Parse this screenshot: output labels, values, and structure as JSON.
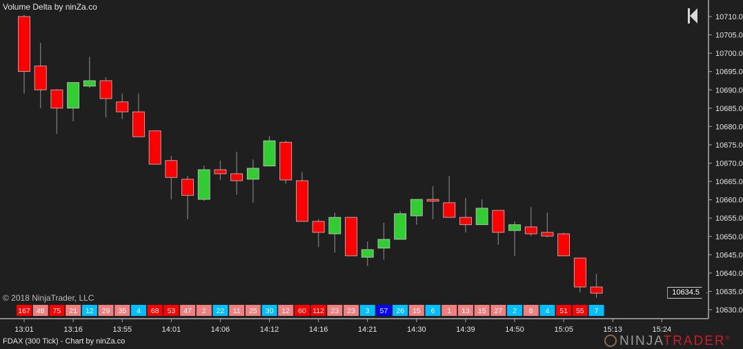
{
  "indicator_title": "Volume Delta by ninZa.co",
  "copyright": "© 2018 NinjaTrader, LLC",
  "footer": "FDAX (300 Tick) - Chart by ninZa.co",
  "logo": {
    "part1": "NINJA",
    "part2": "TRADER",
    "reg": "®"
  },
  "nav_button_icon": "skip-to-end-icon",
  "last_price": "10634.5",
  "colors": {
    "background": "#1f1f1f",
    "up": "#32cd32",
    "down": "#ff0000",
    "strong_neg": "#ff0000",
    "weak_neg": "#f08080",
    "pos": "#00bfff",
    "strong_pos": "#0000ff"
  },
  "chart_data": {
    "type": "candlestick",
    "ylim": [
      10628,
      10712
    ],
    "y_ticks": [
      "10630.0",
      "10635.0",
      "10640.0",
      "10645.0",
      "10650.0",
      "10655.0",
      "10660.0",
      "10665.0",
      "10670.0",
      "10675.0",
      "10680.0",
      "10685.0",
      "10690.0",
      "10695.0",
      "10700.0",
      "10705.0",
      "10710.0"
    ],
    "x_ticks": [
      {
        "bar": 0,
        "label": "13:01"
      },
      {
        "bar": 3,
        "label": "13:16"
      },
      {
        "bar": 6,
        "label": "13:55"
      },
      {
        "bar": 9,
        "label": "14:01"
      },
      {
        "bar": 12,
        "label": "14:06"
      },
      {
        "bar": 15,
        "label": "14:12"
      },
      {
        "bar": 18,
        "label": "14:16"
      },
      {
        "bar": 21,
        "label": "14:21"
      },
      {
        "bar": 24,
        "label": "14:30"
      },
      {
        "bar": 27,
        "label": "14:39"
      },
      {
        "bar": 30,
        "label": "14:50"
      },
      {
        "bar": 33,
        "label": "15:05"
      },
      {
        "bar": 36,
        "label": "15:13"
      },
      {
        "bar": 39,
        "label": "15:24"
      }
    ],
    "ohlc": [
      [
        10710,
        10710.5,
        10689,
        10695
      ],
      [
        10696.5,
        10702.8,
        10685,
        10690
      ],
      [
        10690,
        10690.2,
        10678,
        10685
      ],
      [
        10685,
        10692,
        10681.4,
        10692
      ],
      [
        10691,
        10699,
        10690.5,
        10692.5
      ],
      [
        10692.5,
        10693.4,
        10682.5,
        10687.6
      ],
      [
        10686.7,
        10689,
        10682,
        10684
      ],
      [
        10684,
        10689,
        10677.2,
        10677.2
      ],
      [
        10678.8,
        10679,
        10669.7,
        10669.7
      ],
      [
        10670.7,
        10672,
        10660.1,
        10666.1
      ],
      [
        10665.6,
        10666.5,
        10654.7,
        10661.2
      ],
      [
        10660.1,
        10669.3,
        10659.7,
        10668.2
      ],
      [
        10668.2,
        10670.7,
        10665.4,
        10667.1
      ],
      [
        10667.1,
        10673.1,
        10661.4,
        10665.2
      ],
      [
        10665.6,
        10671,
        10659.2,
        10668.6
      ],
      [
        10669.2,
        10677.4,
        10669.2,
        10676.1
      ],
      [
        10675.7,
        10676.1,
        10664.4,
        10665.4
      ],
      [
        10665.2,
        10667.6,
        10654.1,
        10654.1
      ],
      [
        10654.1,
        10654.7,
        10647.1,
        10651.1
      ],
      [
        10650.7,
        10656.5,
        10645.6,
        10655.2
      ],
      [
        10655.2,
        10655.2,
        10644.7,
        10644.7
      ],
      [
        10644.3,
        10648.6,
        10641.9,
        10646.4
      ],
      [
        10646.8,
        10653.7,
        10643.7,
        10649.2
      ],
      [
        10649.2,
        10656.9,
        10649.2,
        10656.2
      ],
      [
        10655.6,
        10660.1,
        10653.2,
        10660.1
      ],
      [
        10660.1,
        10663.7,
        10654.7,
        10659.6
      ],
      [
        10659.2,
        10666.5,
        10655.2,
        10655.2
      ],
      [
        10655.2,
        10660.5,
        10651.1,
        10653.2
      ],
      [
        10653.2,
        10660.1,
        10653.2,
        10657.7
      ],
      [
        10657.1,
        10657.1,
        10647.7,
        10651.1
      ],
      [
        10651.6,
        10654.1,
        10644.7,
        10653.2
      ],
      [
        10652.6,
        10658,
        10650.1,
        10650.7
      ],
      [
        10651.1,
        10656.5,
        10649.8,
        10650.1
      ],
      [
        10650.7,
        10651,
        10644.7,
        10644.7
      ],
      [
        10644.1,
        10644.1,
        10634.7,
        10636.2
      ],
      [
        10636.2,
        10639.8,
        10633.2,
        10634.5
      ]
    ],
    "volume_delta": [
      {
        "v": "167",
        "c": "strong_neg"
      },
      {
        "v": "48",
        "c": "weak_neg"
      },
      {
        "v": "75",
        "c": "strong_neg"
      },
      {
        "v": "21",
        "c": "weak_neg"
      },
      {
        "v": "12",
        "c": "pos"
      },
      {
        "v": "29",
        "c": "weak_neg"
      },
      {
        "v": "35",
        "c": "weak_neg"
      },
      {
        "v": "4",
        "c": "pos"
      },
      {
        "v": "68",
        "c": "strong_neg"
      },
      {
        "v": "53",
        "c": "strong_neg"
      },
      {
        "v": "47",
        "c": "weak_neg"
      },
      {
        "v": "2",
        "c": "weak_neg"
      },
      {
        "v": "22",
        "c": "pos"
      },
      {
        "v": "11",
        "c": "weak_neg"
      },
      {
        "v": "25",
        "c": "weak_neg"
      },
      {
        "v": "30",
        "c": "pos"
      },
      {
        "v": "12",
        "c": "weak_neg"
      },
      {
        "v": "60",
        "c": "strong_neg"
      },
      {
        "v": "112",
        "c": "strong_neg"
      },
      {
        "v": "23",
        "c": "weak_neg"
      },
      {
        "v": "23",
        "c": "weak_neg"
      },
      {
        "v": "3",
        "c": "pos"
      },
      {
        "v": "57",
        "c": "strong_pos"
      },
      {
        "v": "26",
        "c": "pos"
      },
      {
        "v": "15",
        "c": "weak_neg"
      },
      {
        "v": "6",
        "c": "pos"
      },
      {
        "v": "1",
        "c": "weak_neg"
      },
      {
        "v": "13",
        "c": "weak_neg"
      },
      {
        "v": "15",
        "c": "weak_neg"
      },
      {
        "v": "27",
        "c": "weak_neg"
      },
      {
        "v": "2",
        "c": "pos"
      },
      {
        "v": "8",
        "c": "weak_neg"
      },
      {
        "v": "4",
        "c": "pos"
      },
      {
        "v": "51",
        "c": "strong_neg"
      },
      {
        "v": "55",
        "c": "strong_neg"
      },
      {
        "v": "7",
        "c": "pos"
      }
    ]
  }
}
